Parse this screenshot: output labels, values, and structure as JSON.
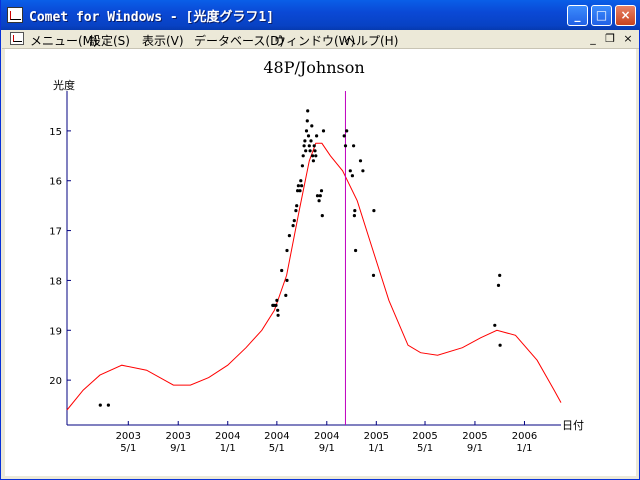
{
  "window": {
    "title": "Comet for Windows - [光度グラフ1]",
    "controls": {
      "minimize": "_",
      "maximize": "□",
      "close": "×"
    }
  },
  "menu": {
    "items": [
      "メニュー(M)",
      "設定(S)",
      "表示(V)",
      "データベース(D)",
      "ウィンドウ(W)",
      "ヘルプ(H)"
    ],
    "mdi_controls": {
      "minimize": "_",
      "restore": "❐",
      "close": "×"
    }
  },
  "chart_data": {
    "type": "scatter",
    "title": "48P/Johnson",
    "ylabel": "光度",
    "xlabel": "日付",
    "ylim": [
      20.9,
      14.2
    ],
    "y_ticks": [
      15,
      16,
      17,
      18,
      19,
      20
    ],
    "x_ticks": [
      {
        "year": "2003",
        "md": "5/1",
        "date": "2003-05-01"
      },
      {
        "year": "2003",
        "md": "9/1",
        "date": "2003-09-01"
      },
      {
        "year": "2004",
        "md": "1/1",
        "date": "2004-01-01"
      },
      {
        "year": "2004",
        "md": "5/1",
        "date": "2004-05-01"
      },
      {
        "year": "2004",
        "md": "9/1",
        "date": "2004-09-01"
      },
      {
        "year": "2005",
        "md": "1/1",
        "date": "2005-01-01"
      },
      {
        "year": "2005",
        "md": "5/1",
        "date": "2005-05-01"
      },
      {
        "year": "2005",
        "md": "9/1",
        "date": "2005-09-01"
      },
      {
        "year": "2006",
        "md": "1/1",
        "date": "2006-01-01"
      }
    ],
    "xlim": [
      "2002-12-01",
      "2006-04-01"
    ],
    "marker_date": "2004-10-17",
    "colors": {
      "curve": "#ff0000",
      "marker": "#c000c0",
      "axis": "#000080",
      "points": "#000000"
    },
    "observations": [
      [
        "2003-02-21",
        20.5
      ],
      [
        "2003-03-13",
        20.5
      ],
      [
        "2004-04-21",
        18.5
      ],
      [
        "2004-04-24",
        18.5
      ],
      [
        "2004-04-29",
        18.5
      ],
      [
        "2004-05-01",
        18.4
      ],
      [
        "2004-05-03",
        18.6
      ],
      [
        "2004-05-04",
        18.7
      ],
      [
        "2004-05-13",
        17.8
      ],
      [
        "2004-05-23",
        18.3
      ],
      [
        "2004-05-26",
        18.0
      ],
      [
        "2004-05-26",
        17.4
      ],
      [
        "2004-06-01",
        17.1
      ],
      [
        "2004-06-10",
        16.9
      ],
      [
        "2004-06-13",
        16.8
      ],
      [
        "2004-06-17",
        16.6
      ],
      [
        "2004-06-19",
        16.5
      ],
      [
        "2004-06-21",
        16.2
      ],
      [
        "2004-06-23",
        16.1
      ],
      [
        "2004-06-27",
        16.2
      ],
      [
        "2004-06-29",
        16.0
      ],
      [
        "2004-07-01",
        16.1
      ],
      [
        "2004-07-03",
        15.7
      ],
      [
        "2004-07-05",
        15.5
      ],
      [
        "2004-07-07",
        15.3
      ],
      [
        "2004-07-09",
        15.2
      ],
      [
        "2004-07-11",
        15.4
      ],
      [
        "2004-07-13",
        15.0
      ],
      [
        "2004-07-15",
        14.8
      ],
      [
        "2004-07-16",
        14.6
      ],
      [
        "2004-07-18",
        15.1
      ],
      [
        "2004-07-20",
        15.3
      ],
      [
        "2004-07-22",
        15.4
      ],
      [
        "2004-07-24",
        15.2
      ],
      [
        "2004-07-26",
        14.9
      ],
      [
        "2004-07-28",
        15.5
      ],
      [
        "2004-07-30",
        15.6
      ],
      [
        "2004-08-01",
        15.3
      ],
      [
        "2004-08-03",
        15.4
      ],
      [
        "2004-08-05",
        15.5
      ],
      [
        "2004-08-07",
        15.1
      ],
      [
        "2004-08-09",
        16.3
      ],
      [
        "2004-08-13",
        16.4
      ],
      [
        "2004-08-16",
        16.3
      ],
      [
        "2004-08-19",
        16.2
      ],
      [
        "2004-08-21",
        16.7
      ],
      [
        "2004-08-24",
        15.0
      ],
      [
        "2004-10-14",
        15.1
      ],
      [
        "2004-10-17",
        15.3
      ],
      [
        "2004-10-20",
        15.0
      ],
      [
        "2004-10-29",
        15.8
      ],
      [
        "2004-11-03",
        15.9
      ],
      [
        "2004-11-06",
        15.3
      ],
      [
        "2004-11-08",
        16.7
      ],
      [
        "2004-11-09",
        16.6
      ],
      [
        "2004-11-11",
        17.4
      ],
      [
        "2004-11-23",
        15.6
      ],
      [
        "2004-11-29",
        15.8
      ],
      [
        "2004-12-25",
        17.9
      ],
      [
        "2004-12-26",
        16.6
      ],
      [
        "2005-10-20",
        18.9
      ],
      [
        "2005-10-29",
        18.1
      ],
      [
        "2005-11-01",
        17.9
      ],
      [
        "2005-11-02",
        19.3
      ]
    ],
    "curve": [
      [
        "2002-12-01",
        20.6
      ],
      [
        "2003-01-10",
        20.2
      ],
      [
        "2003-02-20",
        19.9
      ],
      [
        "2003-04-15",
        19.7
      ],
      [
        "2003-06-15",
        19.8
      ],
      [
        "2003-08-20",
        20.1
      ],
      [
        "2003-10-01",
        20.1
      ],
      [
        "2003-11-15",
        19.95
      ],
      [
        "2004-01-01",
        19.7
      ],
      [
        "2004-02-15",
        19.35
      ],
      [
        "2004-03-25",
        19.0
      ],
      [
        "2004-04-25",
        18.6
      ],
      [
        "2004-05-25",
        17.9
      ],
      [
        "2004-06-25",
        16.6
      ],
      [
        "2004-07-20",
        15.6
      ],
      [
        "2004-08-05",
        15.25
      ],
      [
        "2004-08-20",
        15.25
      ],
      [
        "2004-09-10",
        15.5
      ],
      [
        "2004-10-10",
        15.8
      ],
      [
        "2004-11-15",
        16.4
      ],
      [
        "2004-12-20",
        17.3
      ],
      [
        "2005-02-01",
        18.4
      ],
      [
        "2005-03-20",
        19.3
      ],
      [
        "2005-04-20",
        19.45
      ],
      [
        "2005-06-01",
        19.5
      ],
      [
        "2005-08-01",
        19.35
      ],
      [
        "2005-09-15",
        19.15
      ],
      [
        "2005-10-25",
        19.0
      ],
      [
        "2005-12-10",
        19.1
      ],
      [
        "2006-02-01",
        19.6
      ],
      [
        "2006-03-15",
        20.2
      ],
      [
        "2006-04-01",
        20.45
      ]
    ]
  }
}
